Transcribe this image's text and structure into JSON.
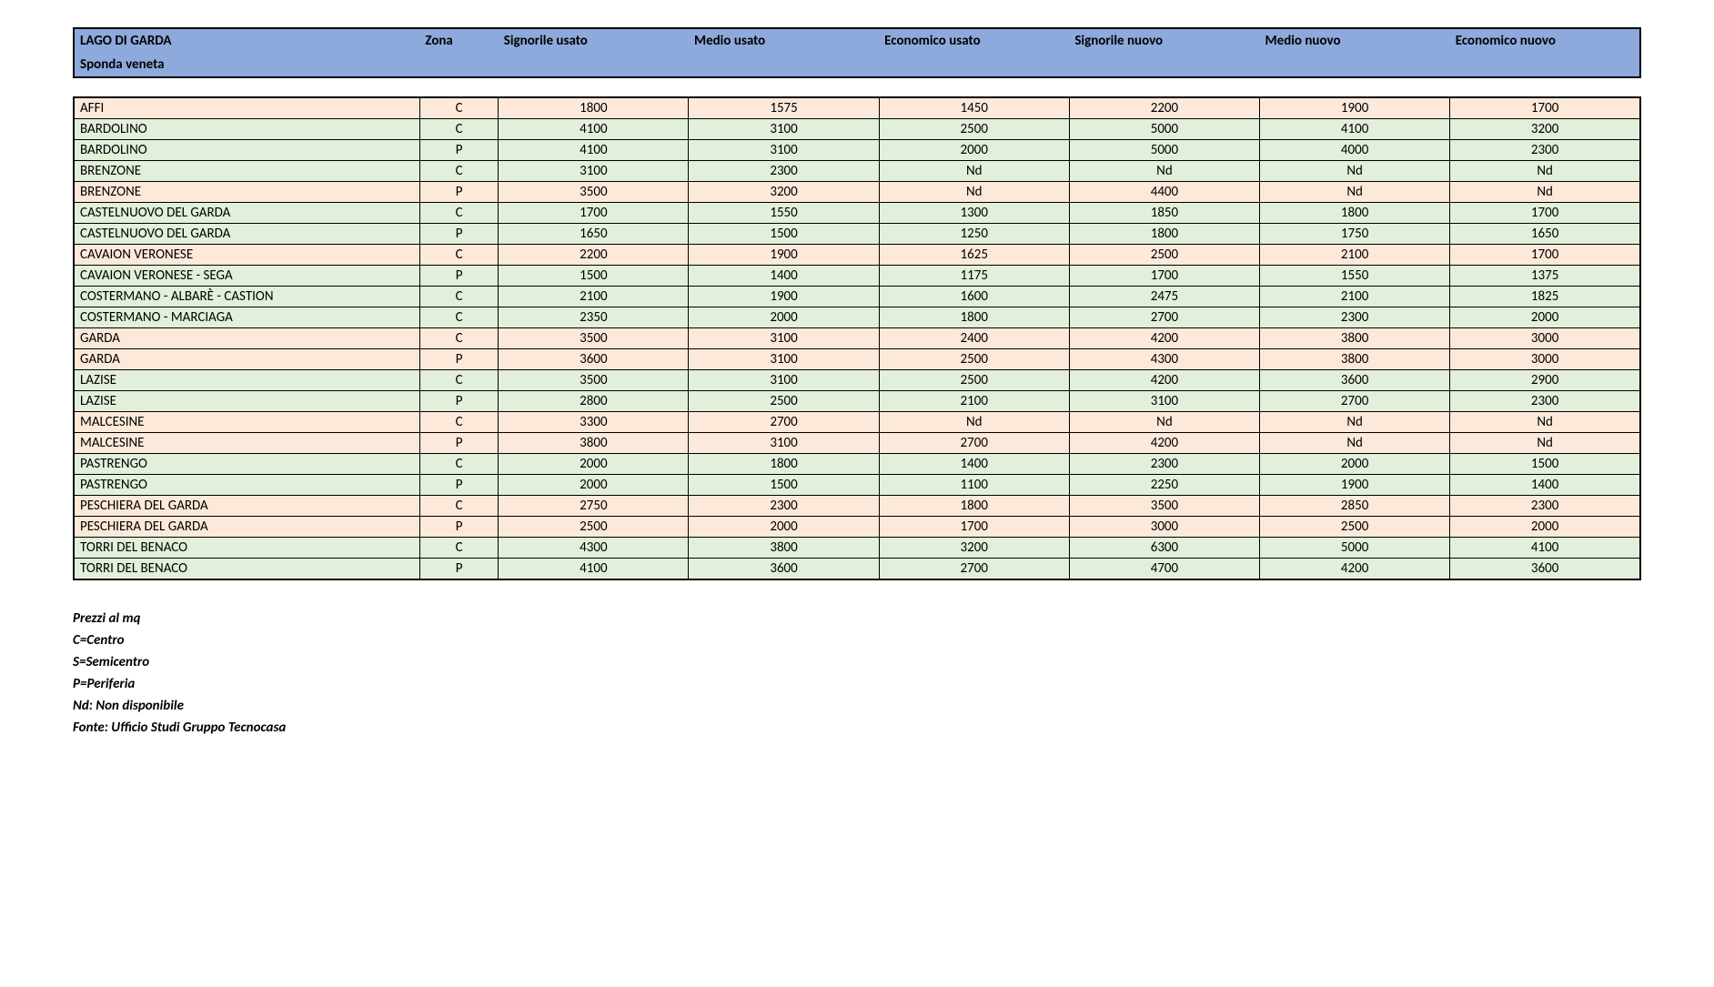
{
  "header": {
    "background_color": "#8ea9db",
    "title_line1": "LAGO DI GARDA",
    "title_line2": "Sponda veneta",
    "columns": [
      "Zona",
      "Signorile usato",
      "Medio usato",
      "Economico usato",
      "Signorile nuovo",
      "Medio nuovo",
      "Economico nuovo"
    ]
  },
  "row_colors": {
    "cream": "#fde9d9",
    "green": "#e2efda"
  },
  "rows": [
    {
      "locality": "AFFI",
      "zona": "C",
      "v": [
        "1800",
        "1575",
        "1450",
        "2200",
        "1900",
        "1700"
      ],
      "color": "cream"
    },
    {
      "locality": "BARDOLINO",
      "zona": "C",
      "v": [
        "4100",
        "3100",
        "2500",
        "5000",
        "4100",
        "3200"
      ],
      "color": "green"
    },
    {
      "locality": "BARDOLINO",
      "zona": "P",
      "v": [
        "4100",
        "3100",
        "2000",
        "5000",
        "4000",
        "2300"
      ],
      "color": "green"
    },
    {
      "locality": "BRENZONE",
      "zona": "C",
      "v": [
        "3100",
        "2300",
        "Nd",
        "Nd",
        "Nd",
        "Nd"
      ],
      "color": "green"
    },
    {
      "locality": "BRENZONE",
      "zona": "P",
      "v": [
        "3500",
        "3200",
        "Nd",
        "4400",
        "Nd",
        "Nd"
      ],
      "color": "cream"
    },
    {
      "locality": "CASTELNUOVO DEL GARDA",
      "zona": "C",
      "v": [
        "1700",
        "1550",
        "1300",
        "1850",
        "1800",
        "1700"
      ],
      "color": "green"
    },
    {
      "locality": "CASTELNUOVO DEL GARDA",
      "zona": "P",
      "v": [
        "1650",
        "1500",
        "1250",
        "1800",
        "1750",
        "1650"
      ],
      "color": "green"
    },
    {
      "locality": "CAVAION VERONESE",
      "zona": "C",
      "v": [
        "2200",
        "1900",
        "1625",
        "2500",
        "2100",
        "1700"
      ],
      "color": "cream"
    },
    {
      "locality": "CAVAION VERONESE - SEGA",
      "zona": "P",
      "v": [
        "1500",
        "1400",
        "1175",
        "1700",
        "1550",
        "1375"
      ],
      "color": "green"
    },
    {
      "locality": "COSTERMANO - ALBARÈ - CASTION",
      "zona": "C",
      "v": [
        "2100",
        "1900",
        "1600",
        "2475",
        "2100",
        "1825"
      ],
      "color": "green"
    },
    {
      "locality": "COSTERMANO - MARCIAGA",
      "zona": "C",
      "v": [
        "2350",
        "2000",
        "1800",
        "2700",
        "2300",
        "2000"
      ],
      "color": "green"
    },
    {
      "locality": "GARDA",
      "zona": "C",
      "v": [
        "3500",
        "3100",
        "2400",
        "4200",
        "3800",
        "3000"
      ],
      "color": "cream"
    },
    {
      "locality": "GARDA",
      "zona": "P",
      "v": [
        "3600",
        "3100",
        "2500",
        "4300",
        "3800",
        "3000"
      ],
      "color": "cream"
    },
    {
      "locality": "LAZISE",
      "zona": "C",
      "v": [
        "3500",
        "3100",
        "2500",
        "4200",
        "3600",
        "2900"
      ],
      "color": "green"
    },
    {
      "locality": "LAZISE",
      "zona": "P",
      "v": [
        "2800",
        "2500",
        "2100",
        "3100",
        "2700",
        "2300"
      ],
      "color": "green"
    },
    {
      "locality": "MALCESINE",
      "zona": "C",
      "v": [
        "3300",
        "2700",
        "Nd",
        "Nd",
        "Nd",
        "Nd"
      ],
      "color": "cream"
    },
    {
      "locality": "MALCESINE",
      "zona": "P",
      "v": [
        "3800",
        "3100",
        "2700",
        "4200",
        "Nd",
        "Nd"
      ],
      "color": "cream"
    },
    {
      "locality": "PASTRENGO",
      "zona": "C",
      "v": [
        "2000",
        "1800",
        "1400",
        "2300",
        "2000",
        "1500"
      ],
      "color": "green"
    },
    {
      "locality": "PASTRENGO",
      "zona": "P",
      "v": [
        "2000",
        "1500",
        "1100",
        "2250",
        "1900",
        "1400"
      ],
      "color": "green"
    },
    {
      "locality": "PESCHIERA DEL GARDA",
      "zona": "C",
      "v": [
        "2750",
        "2300",
        "1800",
        "3500",
        "2850",
        "2300"
      ],
      "color": "cream"
    },
    {
      "locality": "PESCHIERA DEL GARDA",
      "zona": "P",
      "v": [
        "2500",
        "2000",
        "1700",
        "3000",
        "2500",
        "2000"
      ],
      "color": "cream"
    },
    {
      "locality": "TORRI DEL BENACO",
      "zona": "C",
      "v": [
        "4300",
        "3800",
        "3200",
        "6300",
        "5000",
        "4100"
      ],
      "color": "green"
    },
    {
      "locality": "TORRI DEL BENACO",
      "zona": "P",
      "v": [
        "4100",
        "3600",
        "2700",
        "4700",
        "4200",
        "3600"
      ],
      "color": "green"
    }
  ],
  "legend": [
    "Prezzi al mq",
    "C=Centro",
    "S=Semicentro",
    "P=Periferia",
    "Nd: Non disponibile",
    "Fonte: Ufficio Studi Gruppo Tecnocasa"
  ]
}
